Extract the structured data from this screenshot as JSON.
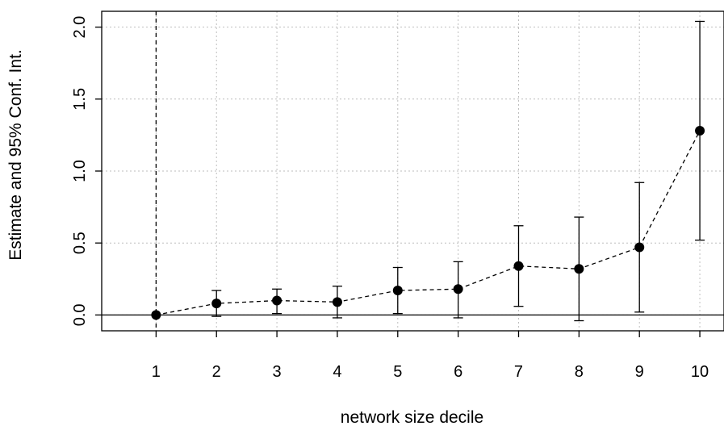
{
  "chart_data": {
    "type": "scatter",
    "title": "",
    "xlabel": "network size decile",
    "ylabel": "Estimate and 95% Conf. Int.",
    "x": [
      1,
      2,
      3,
      4,
      5,
      6,
      7,
      8,
      9,
      10
    ],
    "x_tick_labels": [
      "1",
      "2",
      "3",
      "4",
      "5",
      "6",
      "7",
      "8",
      "9",
      "10"
    ],
    "y_tick_labels": [
      "0.0",
      "0.5",
      "1.0",
      "1.5",
      "2.0"
    ],
    "y_ticks": [
      0,
      0.5,
      1.0,
      1.5,
      2.0
    ],
    "xlim": [
      0.1,
      10.4
    ],
    "ylim": [
      -0.11,
      2.11
    ],
    "grid": true,
    "reference_lines": {
      "horizontal_y": 0,
      "vertical_x": 1
    },
    "series": [
      {
        "estimate": [
          0.0,
          0.08,
          0.1,
          0.09,
          0.17,
          0.18,
          0.34,
          0.32,
          0.47,
          1.28
        ],
        "ci_lower": [
          0.0,
          -0.01,
          0.01,
          -0.02,
          0.01,
          -0.02,
          0.06,
          -0.04,
          0.02,
          0.52
        ],
        "ci_upper": [
          0.0,
          0.17,
          0.18,
          0.2,
          0.33,
          0.37,
          0.62,
          0.68,
          0.92,
          2.04
        ]
      }
    ],
    "colors": {
      "points": "#000000",
      "grid": "#bebebe"
    }
  }
}
